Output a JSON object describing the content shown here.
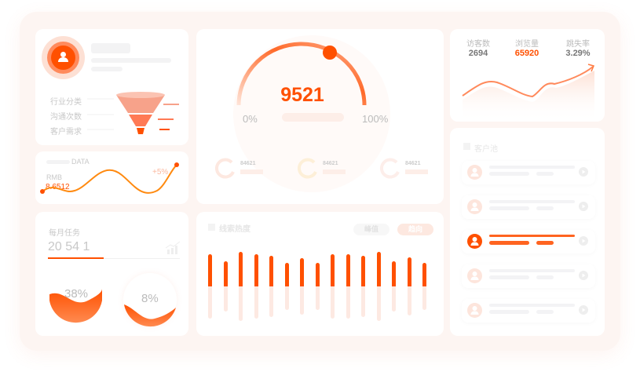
{
  "profile": {
    "avatar_icon": "user-icon",
    "funnel_labels": [
      "行业分类",
      "沟通次数",
      "客户需求"
    ]
  },
  "data_card": {
    "title": "DATA",
    "currency": "RMB",
    "value": "8.6512",
    "change": "+5%"
  },
  "monthly_task": {
    "title": "每月任务",
    "value": "20 54 1",
    "progress": 0.3,
    "gauges": [
      {
        "label": "38%",
        "fill": 0.38
      },
      {
        "label": "8%",
        "fill": 0.08
      }
    ]
  },
  "gauge": {
    "value": "9521",
    "min_label": "0%",
    "max_label": "100%",
    "progress": 0.6,
    "mini_stats": [
      "84621",
      "84621",
      "84621"
    ]
  },
  "heat": {
    "title": "线索热度",
    "tabs": [
      "峰值",
      "趋向"
    ],
    "active_tab": 1,
    "bars": [
      41,
      32,
      44,
      41,
      39,
      30,
      36,
      30,
      41,
      41,
      39,
      44,
      32,
      37,
      30
    ]
  },
  "stats": {
    "items": [
      {
        "label": "访客数",
        "value": "2694"
      },
      {
        "label": "浏览量",
        "value": "65920"
      },
      {
        "label": "跳失率",
        "value": "3.29%"
      }
    ]
  },
  "customer_pool": {
    "title": "客户池",
    "active_index": 2,
    "count": 5
  },
  "colors": {
    "accent": "#ff5000",
    "accent_light": "#fde8e0",
    "bg": "#fdf5f2"
  }
}
